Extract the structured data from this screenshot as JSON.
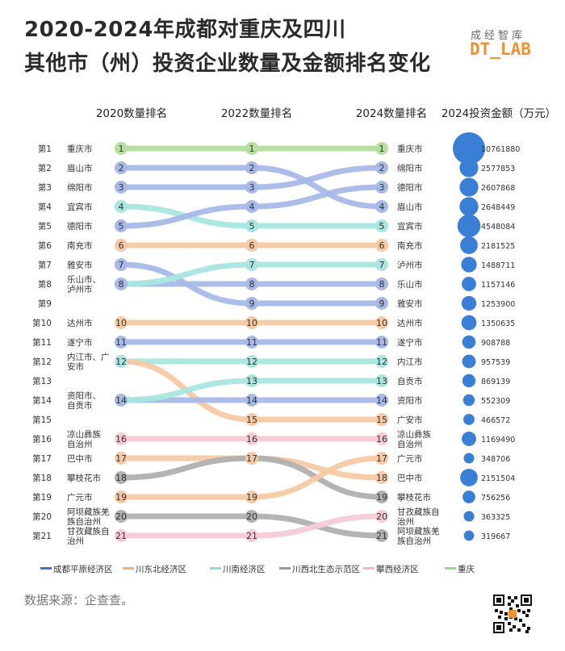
{
  "title_line1": "2020-2024年成都对重庆及四川",
  "title_line2": "其他市（州）投资企业数量及金额排名变化",
  "brand": {
    "cn": "成经智库",
    "en": "DT_LAB"
  },
  "source": "数据来源：企查查。",
  "colors": {
    "成都平原经济区": "#4a6fd1",
    "川东北经济区": "#f0b07e",
    "川南经济区": "#8fded5",
    "川西北生态示范区": "#9a9a9a",
    "攀西经济区": "#f5b8c8",
    "重庆": "#9fd58a",
    "川东北经济区_bg": "#f6c9a4",
    "成都平原经济区_bg": "#a8b9e8",
    "川南经济区_bg": "#a8e6df",
    "川西北生态示范区_bg": "#b0b0b0",
    "攀西经济区_bg": "#f7cbd6",
    "重庆_bg": "#b5de9f",
    "bubble": "#3a7fd6"
  },
  "chart_data": {
    "type": "bump",
    "column_headers": [
      "2020数量排名",
      "2022数量排名",
      "2024数量排名",
      "2024投资金额（万元）"
    ],
    "rank_labels": [
      "第1",
      "第2",
      "第3",
      "第4",
      "第5",
      "第6",
      "第7",
      "第8",
      "第9",
      "第10",
      "第11",
      "第12",
      "第13",
      "第14",
      "第15",
      "第16",
      "第17",
      "第18",
      "第19",
      "第20",
      "第21"
    ],
    "left_labels": [
      {
        "rank": 1,
        "lines": [
          "重庆市"
        ]
      },
      {
        "rank": 2,
        "lines": [
          "眉山市"
        ]
      },
      {
        "rank": 3,
        "lines": [
          "绵阳市"
        ]
      },
      {
        "rank": 4,
        "lines": [
          "宜宾市"
        ]
      },
      {
        "rank": 5,
        "lines": [
          "德阳市"
        ]
      },
      {
        "rank": 6,
        "lines": [
          "南充市"
        ]
      },
      {
        "rank": 7,
        "lines": [
          "雅安市"
        ]
      },
      {
        "rank": 8,
        "lines": [
          "乐山市、",
          "泸州市"
        ]
      },
      {
        "rank": 10,
        "lines": [
          "达州市"
        ]
      },
      {
        "rank": 11,
        "lines": [
          "遂宁市"
        ]
      },
      {
        "rank": 12,
        "lines": [
          "内江市、广",
          "安市"
        ]
      },
      {
        "rank": 14,
        "lines": [
          "资阳市、",
          "自贡市"
        ]
      },
      {
        "rank": 16,
        "lines": [
          "凉山彝族",
          "自治州"
        ]
      },
      {
        "rank": 17,
        "lines": [
          "巴中市"
        ]
      },
      {
        "rank": 18,
        "lines": [
          "攀枝花市"
        ]
      },
      {
        "rank": 19,
        "lines": [
          "广元市"
        ]
      },
      {
        "rank": 20,
        "lines": [
          "阿坝藏族羌",
          "族自治州"
        ]
      },
      {
        "rank": 21,
        "lines": [
          "甘孜藏族自",
          "治州"
        ]
      }
    ],
    "right_labels": [
      {
        "rank": 1,
        "lines": [
          "重庆市"
        ]
      },
      {
        "rank": 2,
        "lines": [
          "绵阳市"
        ]
      },
      {
        "rank": 3,
        "lines": [
          "德阳市"
        ]
      },
      {
        "rank": 4,
        "lines": [
          "眉山市"
        ]
      },
      {
        "rank": 5,
        "lines": [
          "宜宾市"
        ]
      },
      {
        "rank": 6,
        "lines": [
          "南充市"
        ]
      },
      {
        "rank": 7,
        "lines": [
          "泸州市"
        ]
      },
      {
        "rank": 8,
        "lines": [
          "乐山市"
        ]
      },
      {
        "rank": 9,
        "lines": [
          "雅安市"
        ]
      },
      {
        "rank": 10,
        "lines": [
          "达州市"
        ]
      },
      {
        "rank": 11,
        "lines": [
          "遂宁市"
        ]
      },
      {
        "rank": 12,
        "lines": [
          "内江市"
        ]
      },
      {
        "rank": 13,
        "lines": [
          "自贡市"
        ]
      },
      {
        "rank": 14,
        "lines": [
          "资阳市"
        ]
      },
      {
        "rank": 15,
        "lines": [
          "广安市"
        ]
      },
      {
        "rank": 16,
        "lines": [
          "凉山彝族",
          "自治州"
        ]
      },
      {
        "rank": 17,
        "lines": [
          "广元市"
        ]
      },
      {
        "rank": 18,
        "lines": [
          "巴中市"
        ]
      },
      {
        "rank": 19,
        "lines": [
          "攀枝花市"
        ]
      },
      {
        "rank": 20,
        "lines": [
          "甘孜藏族自",
          "治州"
        ]
      },
      {
        "rank": 21,
        "lines": [
          "阿坝藏族羌",
          "族自治州"
        ]
      }
    ],
    "cities": [
      {
        "name": "重庆市",
        "region": "重庆",
        "ranks": [
          1,
          1,
          1
        ]
      },
      {
        "name": "眉山市",
        "region": "成都平原经济区",
        "ranks": [
          2,
          2,
          4
        ]
      },
      {
        "name": "绵阳市",
        "region": "成都平原经济区",
        "ranks": [
          3,
          3,
          2
        ]
      },
      {
        "name": "宜宾市",
        "region": "川南经济区",
        "ranks": [
          4,
          5,
          5
        ]
      },
      {
        "name": "德阳市",
        "region": "成都平原经济区",
        "ranks": [
          5,
          4,
          3
        ]
      },
      {
        "name": "南充市",
        "region": "川东北经济区",
        "ranks": [
          6,
          6,
          6
        ]
      },
      {
        "name": "雅安市",
        "region": "成都平原经济区",
        "ranks": [
          7,
          9,
          9
        ]
      },
      {
        "name": "乐山市",
        "region": "成都平原经济区",
        "ranks": [
          8,
          8,
          8
        ]
      },
      {
        "name": "泸州市",
        "region": "川南经济区",
        "ranks": [
          8,
          7,
          7
        ]
      },
      {
        "name": "达州市",
        "region": "川东北经济区",
        "ranks": [
          10,
          10,
          10
        ]
      },
      {
        "name": "遂宁市",
        "region": "成都平原经济区",
        "ranks": [
          11,
          11,
          11
        ]
      },
      {
        "name": "内江市",
        "region": "川南经济区",
        "ranks": [
          12,
          12,
          12
        ]
      },
      {
        "name": "广安市",
        "region": "川东北经济区",
        "ranks": [
          12,
          15,
          15
        ]
      },
      {
        "name": "资阳市",
        "region": "成都平原经济区",
        "ranks": [
          14,
          14,
          14
        ]
      },
      {
        "name": "自贡市",
        "region": "川南经济区",
        "ranks": [
          14,
          13,
          13
        ]
      },
      {
        "name": "凉山彝族自治州",
        "region": "攀西经济区",
        "ranks": [
          16,
          16,
          16
        ]
      },
      {
        "name": "巴中市",
        "region": "川东北经济区",
        "ranks": [
          17,
          17,
          18
        ]
      },
      {
        "name": "攀枝花市",
        "region": "川西北生态示范区",
        "ranks": [
          18,
          17,
          19
        ]
      },
      {
        "name": "广元市",
        "region": "川东北经济区",
        "ranks": [
          19,
          19,
          17
        ]
      },
      {
        "name": "阿坝藏族羌族自治州",
        "region": "川西北生态示范区",
        "ranks": [
          20,
          20,
          21
        ]
      },
      {
        "name": "甘孜藏族自治州",
        "region": "攀西经济区",
        "ranks": [
          21,
          21,
          20
        ]
      }
    ],
    "node_labels": {
      "2020": [
        1,
        2,
        3,
        4,
        5,
        6,
        7,
        8,
        10,
        11,
        12,
        14,
        16,
        17,
        18,
        19,
        20,
        21
      ],
      "2022": [
        1,
        2,
        3,
        4,
        5,
        6,
        7,
        8,
        9,
        10,
        11,
        12,
        13,
        14,
        15,
        16,
        17,
        19,
        20,
        21
      ],
      "2024": [
        1,
        2,
        3,
        4,
        5,
        6,
        7,
        8,
        9,
        10,
        11,
        12,
        13,
        14,
        15,
        16,
        17,
        18,
        19,
        20,
        21
      ]
    },
    "investment_2024": [
      {
        "rank": 1,
        "city": "重庆市",
        "value": 10761880
      },
      {
        "rank": 2,
        "city": "绵阳市",
        "value": 2577853
      },
      {
        "rank": 3,
        "city": "德阳市",
        "value": 2607868
      },
      {
        "rank": 4,
        "city": "眉山市",
        "value": 2648449
      },
      {
        "rank": 5,
        "city": "宜宾市",
        "value": 4548084
      },
      {
        "rank": 6,
        "city": "南充市",
        "value": 2181525
      },
      {
        "rank": 7,
        "city": "泸州市",
        "value": 1488711
      },
      {
        "rank": 8,
        "city": "乐山市",
        "value": 1157146
      },
      {
        "rank": 9,
        "city": "雅安市",
        "value": 1253900
      },
      {
        "rank": 10,
        "city": "达州市",
        "value": 1350635
      },
      {
        "rank": 11,
        "city": "遂宁市",
        "value": 908788
      },
      {
        "rank": 12,
        "city": "内江市",
        "value": 957539
      },
      {
        "rank": 13,
        "city": "自贡市",
        "value": 869139
      },
      {
        "rank": 14,
        "city": "资阳市",
        "value": 552309
      },
      {
        "rank": 15,
        "city": "广安市",
        "value": 466572
      },
      {
        "rank": 16,
        "city": "凉山彝族自治州",
        "value": 1169490
      },
      {
        "rank": 17,
        "city": "广元市",
        "value": 348706
      },
      {
        "rank": 18,
        "city": "巴中市",
        "value": 2151504
      },
      {
        "rank": 19,
        "city": "攀枝花市",
        "value": 756256
      },
      {
        "rank": 20,
        "city": "甘孜藏族自治州",
        "value": 363325
      },
      {
        "rank": 21,
        "city": "阿坝藏族羌族自治州",
        "value": 319667
      }
    ],
    "legend": [
      "成都平原经济区",
      "川东北经济区",
      "川南经济区",
      "川西北生态示范区",
      "攀西经济区",
      "重庆"
    ],
    "legend_position": "bottom"
  }
}
